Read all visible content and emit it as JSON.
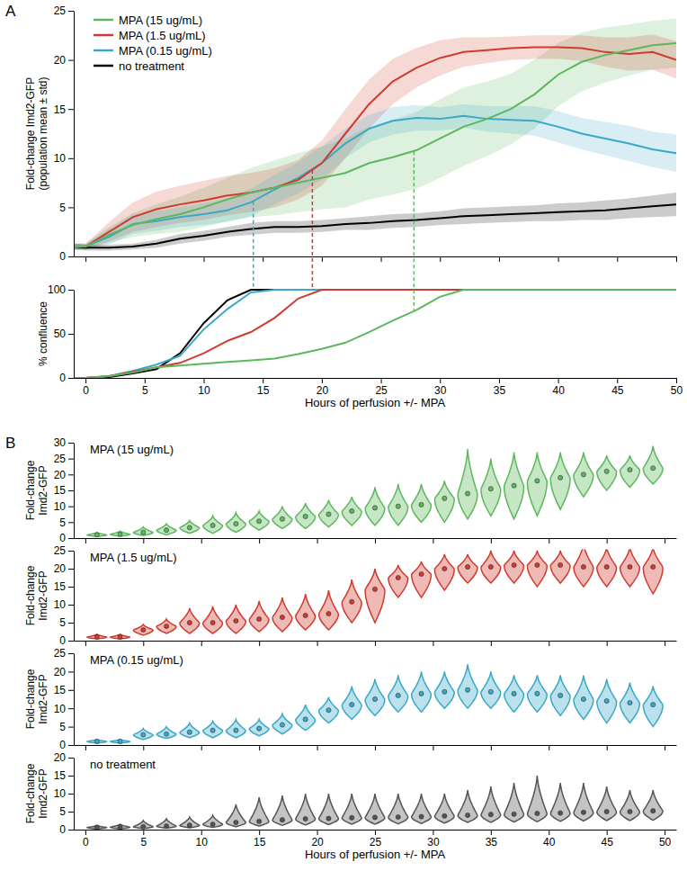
{
  "chart_data": [
    {
      "type": "line",
      "panel": "A",
      "x": [
        -1,
        0,
        2,
        4,
        6,
        8,
        10,
        12,
        14,
        16,
        18,
        20,
        22,
        24,
        26,
        28,
        30,
        32,
        34,
        36,
        38,
        40,
        42,
        44,
        46,
        48,
        50
      ],
      "xlim": [
        -1,
        50
      ],
      "xticks": [
        0,
        5,
        10,
        15,
        20,
        25,
        30,
        35,
        40,
        45,
        50
      ],
      "ylim": [
        0,
        25
      ],
      "yticks": [
        0,
        5,
        10,
        15,
        20,
        25
      ],
      "ylabel": [
        "Fold-change Imd2-GFP",
        "(population mean ± std)"
      ],
      "tick_labels": "y",
      "legend": "upper left",
      "series": [
        {
          "name": "MPA (15 ug/mL)",
          "color": "#5cb85c",
          "values": [
            1,
            1,
            2.2,
            3.2,
            3.8,
            4.3,
            5.0,
            5.8,
            6.5,
            7.0,
            7.5,
            8.0,
            8.5,
            9.5,
            10.1,
            10.8,
            12.0,
            13.2,
            14.0,
            15.0,
            16.5,
            18.5,
            19.8,
            20.5,
            21.0,
            21.5,
            21.7
          ],
          "std": [
            0.3,
            0.3,
            0.8,
            1.2,
            1.5,
            1.8,
            2.0,
            2.2,
            2.5,
            2.8,
            3.0,
            3.2,
            3.5,
            3.7,
            3.8,
            3.9,
            4.0,
            4.0,
            3.8,
            3.6,
            3.5,
            3.2,
            3.0,
            2.8,
            2.6,
            2.5,
            2.5
          ],
          "threshold": {
            "x": 27.8,
            "y": 10.7
          }
        },
        {
          "name": "MPA (1.5 ug/mL)",
          "color": "#d03a2f",
          "values": [
            1,
            1,
            2.5,
            4.0,
            4.8,
            5.3,
            5.7,
            6.2,
            6.5,
            7.0,
            7.8,
            9.5,
            12.5,
            15.5,
            17.8,
            19.2,
            20.2,
            20.8,
            21.0,
            21.2,
            21.3,
            21.3,
            21.2,
            20.8,
            20.6,
            20.8,
            20.0
          ],
          "std": [
            0.3,
            0.3,
            1.0,
            1.5,
            1.8,
            1.9,
            2.0,
            2.0,
            2.0,
            2.0,
            2.0,
            2.3,
            2.5,
            2.5,
            2.3,
            2.0,
            1.8,
            1.5,
            1.3,
            1.2,
            1.2,
            1.2,
            1.3,
            1.5,
            1.7,
            1.8,
            1.9
          ],
          "threshold": {
            "x": 19.2,
            "y": 8.8
          }
        },
        {
          "name": "MPA (0.15 ug/mL)",
          "color": "#3aa8c9",
          "values": [
            1,
            1,
            2.0,
            3.3,
            3.6,
            4.0,
            4.3,
            4.7,
            5.5,
            6.8,
            8.0,
            9.5,
            11.5,
            13.0,
            13.8,
            14.1,
            14.0,
            14.3,
            14.0,
            13.9,
            13.8,
            13.2,
            12.5,
            12.0,
            11.5,
            10.9,
            10.5
          ],
          "std": [
            0.3,
            0.3,
            0.8,
            1.0,
            1.0,
            1.0,
            1.1,
            1.2,
            1.4,
            1.5,
            1.6,
            1.7,
            1.5,
            1.4,
            1.4,
            1.3,
            1.2,
            1.2,
            1.3,
            1.4,
            1.5,
            1.6,
            1.6,
            1.7,
            1.8,
            1.8,
            1.9
          ],
          "threshold": {
            "x": 14.2,
            "y": 5.6
          }
        },
        {
          "name": "no treatment",
          "color": "#000000",
          "values": [
            1,
            0.9,
            0.9,
            1.0,
            1.3,
            1.8,
            2.1,
            2.5,
            2.8,
            3.0,
            3.0,
            3.1,
            3.3,
            3.4,
            3.6,
            3.7,
            3.9,
            4.1,
            4.2,
            4.3,
            4.4,
            4.5,
            4.6,
            4.7,
            4.9,
            5.1,
            5.3
          ],
          "std": [
            0.3,
            0.3,
            0.3,
            0.3,
            0.4,
            0.5,
            0.5,
            0.5,
            0.6,
            0.6,
            0.6,
            0.6,
            0.6,
            0.7,
            0.7,
            0.7,
            0.7,
            0.8,
            0.8,
            0.8,
            0.8,
            0.9,
            0.9,
            1.0,
            1.0,
            1.1,
            1.2
          ]
        }
      ]
    },
    {
      "type": "line",
      "x": [
        -1,
        0,
        2,
        4,
        6,
        8,
        10,
        12,
        14,
        16,
        18,
        20,
        22,
        24,
        26,
        28,
        30,
        32,
        34,
        36,
        38,
        40,
        42,
        44,
        46,
        48,
        50
      ],
      "xlim": [
        -1,
        50
      ],
      "xticks": [
        0,
        5,
        10,
        15,
        20,
        25,
        30,
        35,
        40,
        45,
        50
      ],
      "ylim": [
        0,
        100
      ],
      "yticks": [
        0,
        50,
        100
      ],
      "ylabel": [
        "% confluence"
      ],
      "xlabel": "Hours of perfusion +/- MPA",
      "series": [
        {
          "color": "#5cb85c",
          "values": [
            0,
            0,
            2,
            6,
            12,
            14,
            16,
            18,
            20,
            22,
            27,
            33,
            40,
            52,
            65,
            77,
            92,
            100,
            100,
            100,
            100,
            100,
            100,
            100,
            100,
            100,
            100
          ],
          "threshold": {
            "x": 27.8,
            "y": 76
          }
        },
        {
          "color": "#d03a2f",
          "values": [
            0,
            0,
            2,
            7,
            12,
            17,
            28,
            42,
            52,
            68,
            90,
            100,
            100,
            100,
            100,
            100,
            100,
            100,
            100,
            100,
            100,
            100,
            100,
            100,
            100,
            100,
            100
          ],
          "threshold": {
            "x": 19.2,
            "y": 100
          }
        },
        {
          "color": "#3aa8c9",
          "values": [
            0,
            0,
            2,
            8,
            15,
            25,
            55,
            78,
            97,
            100,
            100,
            100,
            100,
            100,
            100,
            100,
            100,
            100,
            100,
            100,
            100,
            100,
            100,
            100,
            100,
            100,
            100
          ],
          "threshold": {
            "x": 14.2,
            "y": 100
          }
        },
        {
          "color": "#000000",
          "values": [
            0,
            0,
            1,
            5,
            10,
            28,
            62,
            88,
            100,
            100,
            100,
            100,
            100,
            100,
            100,
            100,
            100,
            100,
            100,
            100,
            100,
            100,
            100,
            100,
            100,
            100,
            100
          ]
        }
      ]
    },
    {
      "type": "violin",
      "panel": "B",
      "title": "MPA (15 ug/mL)",
      "color": "#5cb85c",
      "x": [
        1,
        3,
        5,
        7,
        9,
        11,
        13,
        15,
        17,
        19,
        21,
        23,
        25,
        27,
        29,
        31,
        33,
        35,
        37,
        39,
        41,
        43,
        45,
        47,
        49
      ],
      "values": [
        1.0,
        1.2,
        1.8,
        2.5,
        3.3,
        4.0,
        4.5,
        5.3,
        6.0,
        6.8,
        7.5,
        8.5,
        9.5,
        10.0,
        10.5,
        12.5,
        14.0,
        15.5,
        16.5,
        18.0,
        19.0,
        20.0,
        21.0,
        21.5,
        22.0
      ],
      "min": [
        0.5,
        0.6,
        0.8,
        1.0,
        1.5,
        1.5,
        1.8,
        2.5,
        3,
        3,
        3.5,
        4,
        4,
        4,
        5,
        5,
        6,
        7,
        6,
        7,
        9,
        13,
        15,
        16,
        17
      ],
      "max": [
        1.8,
        2.2,
        3.5,
        4.5,
        5.5,
        7,
        8,
        8.5,
        10,
        11,
        12,
        13,
        16,
        17,
        17,
        18,
        28,
        25,
        27,
        27,
        27,
        27,
        26,
        26,
        29
      ],
      "xlim": [
        -1,
        51
      ],
      "xticks": [
        0,
        5,
        10,
        15,
        20,
        25,
        30,
        35,
        40,
        45,
        50
      ],
      "ylim": [
        0,
        30
      ],
      "yticks": [
        0,
        5,
        10,
        15,
        20,
        25,
        30
      ],
      "ylabel": [
        "Fold-change",
        "Imd2-GFP"
      ],
      "tick_labels": "y"
    },
    {
      "type": "violin",
      "title": "MPA (1.5 ug/mL)",
      "color": "#d03a2f",
      "x": [
        1,
        3,
        5,
        7,
        9,
        11,
        13,
        15,
        17,
        19,
        21,
        23,
        25,
        27,
        29,
        31,
        33,
        35,
        37,
        39,
        41,
        43,
        45,
        47,
        49
      ],
      "values": [
        1,
        1,
        3,
        4,
        5,
        5,
        5.5,
        6,
        6.5,
        7,
        7.5,
        10.8,
        14.3,
        17.5,
        18.5,
        20,
        20.5,
        20.5,
        21,
        21,
        21,
        20.5,
        20.5,
        20.5,
        20.5
      ],
      "min": [
        0.5,
        0.5,
        1.5,
        2,
        2,
        2,
        2,
        2.5,
        2.5,
        3,
        3,
        5,
        5,
        12,
        12,
        14,
        16,
        16,
        16,
        15,
        16,
        15,
        15,
        15,
        13
      ],
      "max": [
        1.8,
        1.8,
        4.5,
        6,
        9,
        9.5,
        10,
        11,
        12,
        13,
        14,
        17,
        20,
        21,
        22,
        24,
        24,
        25,
        25,
        25,
        25,
        27,
        26,
        26,
        26
      ],
      "xlim": [
        -1,
        51
      ],
      "xticks": [
        0,
        5,
        10,
        15,
        20,
        25,
        30,
        35,
        40,
        45,
        50
      ],
      "ylim": [
        0,
        25
      ],
      "yticks": [
        0,
        5,
        10,
        15,
        20,
        25
      ],
      "ylabel": [
        "Fold-change",
        "Imd2-GFP"
      ],
      "tick_labels": "y"
    },
    {
      "type": "violin",
      "title": "MPA (0.15 ug/mL)",
      "color": "#3aa8c9",
      "x": [
        1,
        3,
        5,
        7,
        9,
        11,
        13,
        15,
        17,
        19,
        21,
        23,
        25,
        27,
        29,
        31,
        33,
        35,
        37,
        39,
        41,
        43,
        45,
        47,
        49
      ],
      "values": [
        1,
        1,
        2.8,
        3,
        3.5,
        4,
        4,
        4.5,
        5.5,
        7,
        9.5,
        11,
        12.5,
        13.5,
        14,
        14.5,
        15,
        14.5,
        14,
        14,
        13.5,
        12.5,
        12,
        11.5,
        11
      ],
      "min": [
        0.5,
        0.5,
        1.5,
        1.8,
        2,
        2,
        2,
        2.5,
        3,
        4,
        6,
        7,
        8,
        9,
        9,
        10,
        10,
        10,
        9,
        9,
        8,
        7,
        6,
        6,
        5
      ],
      "max": [
        1.5,
        1.5,
        4.5,
        5,
        6,
        6.5,
        7,
        7,
        8.5,
        11,
        13,
        16,
        18,
        19,
        20,
        20,
        22,
        20,
        19,
        19,
        19,
        19,
        18,
        17,
        16
      ],
      "xlim": [
        -1,
        51
      ],
      "xticks": [
        0,
        5,
        10,
        15,
        20,
        25,
        30,
        35,
        40,
        45,
        50
      ],
      "ylim": [
        0,
        25
      ],
      "yticks": [
        0,
        5,
        10,
        15,
        20,
        25
      ],
      "ylabel": [
        "Fold-change",
        "Imd2-GFP"
      ],
      "tick_labels": "y"
    },
    {
      "type": "violin",
      "title": "no treatment",
      "color": "#555555",
      "x": [
        1,
        3,
        5,
        7,
        9,
        11,
        13,
        15,
        17,
        19,
        21,
        23,
        25,
        27,
        29,
        31,
        33,
        35,
        37,
        39,
        41,
        43,
        45,
        47,
        49
      ],
      "values": [
        0.6,
        0.7,
        0.8,
        1.0,
        1.2,
        1.5,
        2.0,
        2.3,
        2.7,
        3.0,
        3.1,
        3.3,
        3.4,
        3.5,
        3.6,
        3.8,
        4.0,
        4.2,
        4.3,
        4.5,
        4.6,
        4.8,
        5.0,
        5.0,
        5.2
      ],
      "min": [
        0.2,
        0.2,
        0.3,
        0.4,
        0.5,
        0.6,
        0.8,
        1,
        1.2,
        1.3,
        1.4,
        1.5,
        1.5,
        1.6,
        1.7,
        1.8,
        2,
        2,
        2.1,
        2.2,
        2.3,
        2.4,
        2.5,
        2.5,
        2.6
      ],
      "max": [
        1.2,
        1.5,
        2.5,
        3,
        3.5,
        4,
        7,
        9,
        9.5,
        10,
        10,
        10,
        10,
        10,
        10,
        10,
        11,
        12,
        13,
        15,
        13,
        13,
        12,
        11,
        11
      ],
      "xlim": [
        -1,
        51
      ],
      "xticks": [
        0,
        5,
        10,
        15,
        20,
        25,
        30,
        35,
        40,
        45,
        50
      ],
      "ylim": [
        0,
        20
      ],
      "yticks": [
        0,
        5,
        10,
        15,
        20
      ],
      "ylabel": [
        "Fold-change",
        "Imd2-GFP"
      ],
      "xlabel": "Hours of perfusion +/- MPA"
    }
  ]
}
